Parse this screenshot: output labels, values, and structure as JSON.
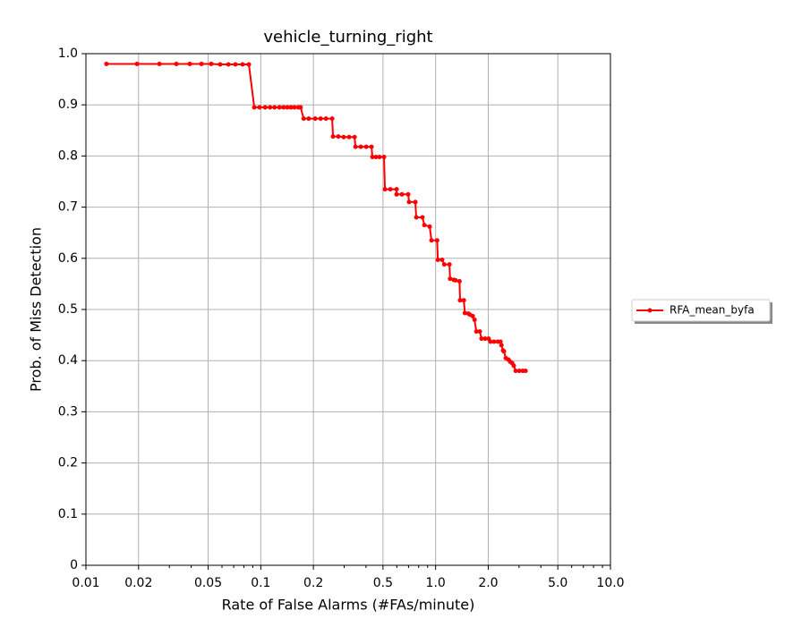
{
  "chart_data": {
    "type": "line",
    "title": "vehicle_turning_right",
    "x_label": "Rate of False Alarms (#FAs/minute)",
    "y_label": "Prob. of Miss Detection",
    "x_scale": "log",
    "grid": true,
    "legend_position": "right",
    "xlim": [
      0.01,
      10
    ],
    "ylim": [
      0,
      1
    ],
    "xticks": [
      0.01,
      0.02,
      0.05,
      0.1,
      0.2,
      0.5,
      {
        "value": 1,
        "label": "1.0"
      },
      {
        "value": 2,
        "label": "2.0"
      },
      {
        "value": 5,
        "label": "5.0"
      },
      {
        "value": 10,
        "label": "10.0"
      }
    ],
    "xminorticks": [
      0.03,
      0.04,
      0.06,
      0.07,
      0.08,
      0.09,
      0.3,
      0.4,
      0.6,
      0.7,
      0.8,
      0.9,
      3,
      4,
      6,
      7,
      8,
      9
    ],
    "yticks": [
      0,
      0.1,
      0.2,
      0.3,
      0.4,
      0.5,
      0.6,
      0.7,
      0.8,
      0.9,
      {
        "value": 1,
        "label": "1.0"
      }
    ],
    "x": [
      0.0131,
      0.0196,
      0.0263,
      0.0329,
      0.0393,
      0.0458,
      0.0521,
      0.0586,
      0.0652,
      0.0716,
      0.0787,
      0.0855,
      0.0918,
      0.0985,
      0.106,
      0.113,
      0.12,
      0.128,
      0.135,
      0.142,
      0.149,
      0.156,
      0.164,
      0.169,
      0.176,
      0.188,
      0.205,
      0.22,
      0.236,
      0.256,
      0.259,
      0.278,
      0.298,
      0.32,
      0.344,
      0.348,
      0.373,
      0.401,
      0.43,
      0.435,
      0.456,
      0.478,
      0.507,
      0.513,
      0.551,
      0.598,
      0.598,
      0.642,
      0.697,
      0.705,
      0.766,
      0.775,
      0.841,
      0.862,
      0.925,
      0.947,
      1.02,
      1.03,
      1.09,
      1.12,
      1.2,
      1.21,
      1.27,
      1.3,
      1.37,
      1.38,
      1.45,
      1.47,
      1.54,
      1.57,
      1.63,
      1.67,
      1.71,
      1.79,
      1.83,
      1.92,
      2.01,
      2.06,
      2.16,
      2.27,
      2.35,
      2.38,
      2.43,
      2.46,
      2.52,
      2.61,
      2.67,
      2.74,
      2.8,
      2.87,
      3.01,
      3.15,
      3.27
    ],
    "series": [
      {
        "name": "RFA_mean_byfa",
        "color": "#ff0000",
        "values": [
          0.98,
          0.98,
          0.98,
          0.98,
          0.98,
          0.98,
          0.98,
          0.979,
          0.979,
          0.979,
          0.979,
          0.979,
          0.895,
          0.895,
          0.895,
          0.895,
          0.895,
          0.895,
          0.895,
          0.895,
          0.895,
          0.895,
          0.895,
          0.895,
          0.873,
          0.873,
          0.873,
          0.873,
          0.873,
          0.873,
          0.838,
          0.838,
          0.837,
          0.837,
          0.837,
          0.818,
          0.818,
          0.818,
          0.818,
          0.798,
          0.798,
          0.798,
          0.798,
          0.735,
          0.735,
          0.735,
          0.725,
          0.725,
          0.725,
          0.71,
          0.71,
          0.68,
          0.68,
          0.665,
          0.662,
          0.635,
          0.635,
          0.597,
          0.597,
          0.588,
          0.588,
          0.56,
          0.558,
          0.557,
          0.555,
          0.518,
          0.518,
          0.493,
          0.492,
          0.49,
          0.487,
          0.48,
          0.457,
          0.457,
          0.443,
          0.443,
          0.443,
          0.437,
          0.437,
          0.437,
          0.437,
          0.43,
          0.42,
          0.418,
          0.405,
          0.402,
          0.398,
          0.395,
          0.39,
          0.38,
          0.38,
          0.38,
          0.38
        ]
      }
    ]
  }
}
